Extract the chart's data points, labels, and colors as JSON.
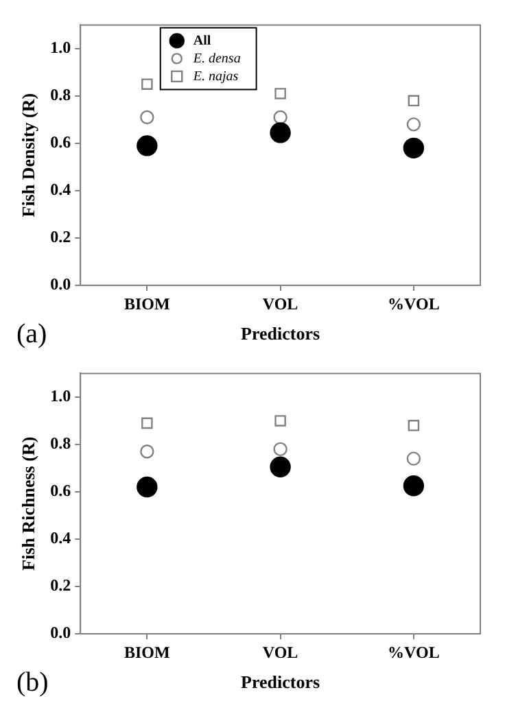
{
  "chart_data": [
    {
      "type": "scatter",
      "categories": [
        "BIOM",
        "VOL",
        "%VOL"
      ],
      "xlabel": "Predictors",
      "ylabel": "Fish Density (R)",
      "ylim": [
        0,
        1.1
      ],
      "yticks": [
        {
          "value": 0,
          "label": "0.0"
        },
        {
          "value": 0.2,
          "label": "0.2"
        },
        {
          "value": 0.4,
          "label": "0.4"
        },
        {
          "value": 0.6,
          "label": "0.6"
        },
        {
          "value": 0.8,
          "label": "0.8"
        },
        {
          "value": 1,
          "label": "1.0"
        }
      ],
      "grid": false,
      "legend": "top left",
      "annotations": [
        "(a)"
      ],
      "series": [
        {
          "name": "All",
          "color": "#000000",
          "marker": "circle",
          "values": [
            0.59,
            0.645,
            0.58
          ]
        },
        {
          "name": "E. densa",
          "color": "#808080",
          "marker": "circle",
          "values": [
            0.71,
            0.71,
            0.68
          ]
        },
        {
          "name": "E. najas",
          "color": "#808080",
          "marker": "square",
          "values": [
            0.85,
            0.81,
            0.78
          ]
        }
      ]
    },
    {
      "type": "scatter",
      "categories": [
        "BIOM",
        "VOL",
        "%VOL"
      ],
      "xlabel": "Predictors",
      "ylabel": "Fish Richness (R)",
      "ylim": [
        0,
        1.1
      ],
      "yticks": [
        {
          "value": 0,
          "label": "0.0"
        },
        {
          "value": 0.2,
          "label": "0.2"
        },
        {
          "value": 0.4,
          "label": "0.4"
        },
        {
          "value": 0.6,
          "label": "0.6"
        },
        {
          "value": 0.8,
          "label": "0.8"
        },
        {
          "value": 1,
          "label": "1.0"
        }
      ],
      "grid": false,
      "legend": false,
      "annotations": [
        "(b)"
      ],
      "series": [
        {
          "color": "#000000",
          "marker": "circle",
          "values": [
            0.62,
            0.705,
            0.625
          ]
        },
        {
          "color": "#808080",
          "marker": "circle",
          "values": [
            0.77,
            0.78,
            0.74
          ]
        },
        {
          "color": "#808080",
          "marker": "square",
          "values": [
            0.89,
            0.9,
            0.88
          ]
        }
      ]
    }
  ]
}
